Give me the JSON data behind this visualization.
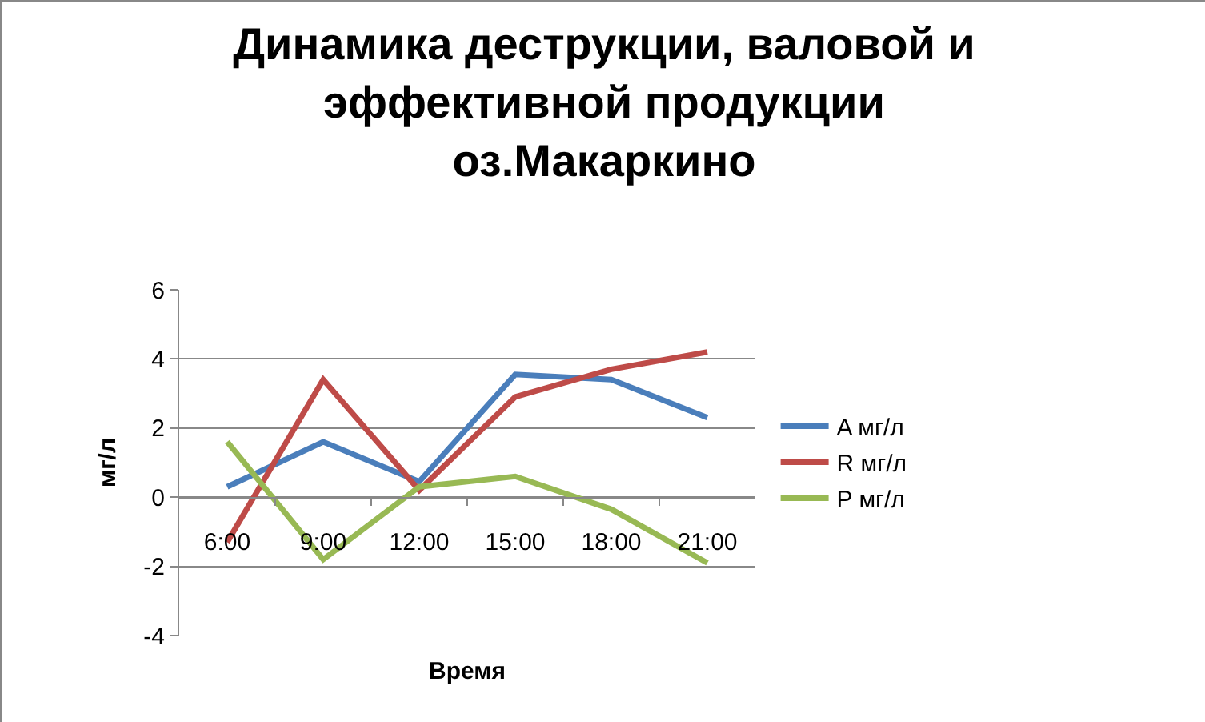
{
  "chart_data": {
    "type": "line",
    "title": "Динамика деструкции, валовой и эффективной продукции оз.Макаркино",
    "xlabel": "Время",
    "ylabel": "мг/л",
    "categories": [
      "6:00",
      "9:00",
      "12:00",
      "15:00",
      "18:00",
      "21:00"
    ],
    "series": [
      {
        "name": "A мг/л",
        "color": "#4a7ebb",
        "values": [
          0.3,
          1.6,
          0.45,
          3.55,
          3.4,
          2.3
        ]
      },
      {
        "name": "R мг/л",
        "color": "#be4b48",
        "values": [
          -1.3,
          3.4,
          0.2,
          2.9,
          3.7,
          4.2
        ]
      },
      {
        "name": "P мг/л",
        "color": "#98b954",
        "values": [
          1.6,
          -1.8,
          0.3,
          0.6,
          -0.35,
          -1.9
        ]
      }
    ],
    "ylim": [
      -4,
      6
    ],
    "yticks": [
      -4,
      -2,
      0,
      2,
      4,
      6
    ],
    "grid": "y",
    "legend": "right",
    "marker": "none",
    "line_style": "solid"
  }
}
